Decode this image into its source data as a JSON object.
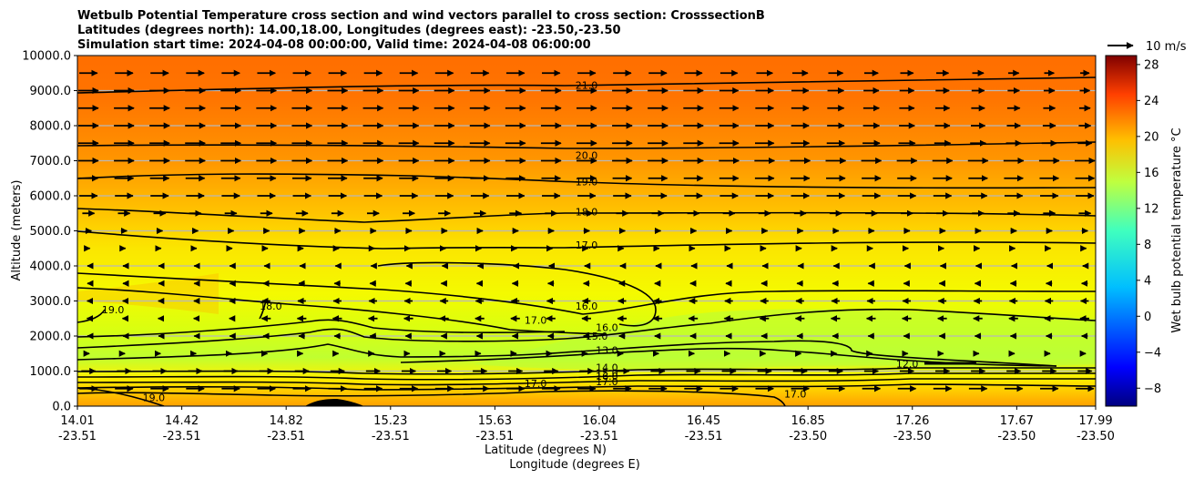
{
  "chart_data": {
    "type": "contour",
    "title_lines": [
      "Wetbulb Potential Temperature cross section and wind vectors parallel to cross section: CrosssectionB",
      "Latitudes (degrees north): 14.00,18.00, Longitudes (degrees east): -23.50,-23.50",
      "Simulation start time: 2024-04-08 00:00:00, Valid time: 2024-04-08 06:00:00"
    ],
    "xlabel_lines": [
      "Latitude (degrees N)",
      "Longitude (degrees E)"
    ],
    "ylabel": "Altitude (meters)",
    "x_ticks": [
      {
        "lat": "14.01",
        "lon": "-23.51",
        "pos": 0.0
      },
      {
        "lat": "14.42",
        "lon": "-23.51",
        "pos": 0.1025
      },
      {
        "lat": "14.82",
        "lon": "-23.51",
        "pos": 0.205
      },
      {
        "lat": "15.23",
        "lon": "-23.51",
        "pos": 0.3075
      },
      {
        "lat": "15.63",
        "lon": "-23.51",
        "pos": 0.41
      },
      {
        "lat": "16.04",
        "lon": "-23.51",
        "pos": 0.5125
      },
      {
        "lat": "16.45",
        "lon": "-23.51",
        "pos": 0.615
      },
      {
        "lat": "16.85",
        "lon": "-23.50",
        "pos": 0.7175
      },
      {
        "lat": "17.26",
        "lon": "-23.50",
        "pos": 0.82
      },
      {
        "lat": "17.67",
        "lon": "-23.50",
        "pos": 0.9225
      },
      {
        "lat": "17.99",
        "lon": "-23.50",
        "pos": 1.0
      }
    ],
    "y_ticks": [
      "0.0",
      "1000.0",
      "2000.0",
      "3000.0",
      "4000.0",
      "5000.0",
      "6000.0",
      "7000.0",
      "8000.0",
      "9000.0",
      "10000.0"
    ],
    "ylim": [
      0,
      10000
    ],
    "grid": "horizontal",
    "colorbar": {
      "label": "Wet bulb potential temperature °C",
      "range": [
        -10,
        29
      ],
      "ticks": [
        "−8",
        "−4",
        "0",
        "4",
        "8",
        "12",
        "16",
        "20",
        "24",
        "28"
      ],
      "tick_values": [
        -8,
        -4,
        0,
        4,
        8,
        12,
        16,
        20,
        24,
        28
      ],
      "colormap": "jet"
    },
    "quiver_key": "10 m/s",
    "contour_labels": [
      {
        "text": "21.0",
        "x": 0.5,
        "y": 9100
      },
      {
        "text": "20.0",
        "x": 0.5,
        "y": 7100
      },
      {
        "text": "19.0",
        "x": 0.5,
        "y": 6350
      },
      {
        "text": "18.0",
        "x": 0.5,
        "y": 5500
      },
      {
        "text": "17.0",
        "x": 0.5,
        "y": 4550
      },
      {
        "text": "16.0",
        "x": 0.5,
        "y": 2800
      },
      {
        "text": "16.0",
        "x": 0.52,
        "y": 2200
      },
      {
        "text": "15.0",
        "x": 0.51,
        "y": 1950
      },
      {
        "text": "13.0",
        "x": 0.52,
        "y": 1550
      },
      {
        "text": "14.0",
        "x": 0.52,
        "y": 1050
      },
      {
        "text": "15.0",
        "x": 0.52,
        "y": 900
      },
      {
        "text": "16.0",
        "x": 0.52,
        "y": 800
      },
      {
        "text": "17.0",
        "x": 0.52,
        "y": 650
      },
      {
        "text": "17.0",
        "x": 0.45,
        "y": 600
      },
      {
        "text": "17.0",
        "x": 0.45,
        "y": 2400
      },
      {
        "text": "18.0",
        "x": 0.19,
        "y": 2800
      },
      {
        "text": "19.0",
        "x": 0.035,
        "y": 2700
      },
      {
        "text": "19.0",
        "x": 0.075,
        "y": 200
      },
      {
        "text": "12.0",
        "x": 0.815,
        "y": 1150
      },
      {
        "text": "17.0",
        "x": 0.705,
        "y": 300
      }
    ],
    "wind_rows": [
      {
        "alt": 9500,
        "dir": 1,
        "mag": 0.9,
        "fade": 0.5
      },
      {
        "alt": 9000,
        "dir": 1,
        "mag": 1.0,
        "fade": 0.5
      },
      {
        "alt": 8500,
        "dir": 1,
        "mag": 1.0,
        "fade": 0.55
      },
      {
        "alt": 8000,
        "dir": 1,
        "mag": 1.0,
        "fade": 0.6
      },
      {
        "alt": 7500,
        "dir": 1,
        "mag": 1.0,
        "fade": 0.7
      },
      {
        "alt": 7000,
        "dir": 1,
        "mag": 1.0,
        "fade": 0.8
      },
      {
        "alt": 6500,
        "dir": 1,
        "mag": 0.95,
        "fade": 0.8
      },
      {
        "alt": 6000,
        "dir": 1,
        "mag": 0.9,
        "fade": 0.8
      },
      {
        "alt": 5500,
        "dir": 1,
        "mag": 0.6,
        "fade": 0.8
      },
      {
        "alt": 5000,
        "dir": 1,
        "mag": 0.3,
        "fade": 0.8
      },
      {
        "alt": 4500,
        "dir": 1,
        "mag": 0.15,
        "fade": 0.8
      },
      {
        "alt": 4000,
        "dir": -1,
        "mag": 0.2,
        "fade": 1.0
      },
      {
        "alt": 3500,
        "dir": -1,
        "mag": 0.3,
        "fade": 1.0
      },
      {
        "alt": 3000,
        "dir": -1,
        "mag": 0.4,
        "fade": 1.0
      },
      {
        "alt": 2500,
        "dir": -1,
        "mag": 0.45,
        "fade": 1.0
      },
      {
        "alt": 2000,
        "dir": -1,
        "mag": 0.3,
        "fade": 1.0
      },
      {
        "alt": 1500,
        "dir": 1,
        "mag": 0.1,
        "fade": 1.0
      },
      {
        "alt": 1000,
        "dir": 1,
        "mag": 0.7,
        "fade": 1.0
      },
      {
        "alt": 500,
        "dir": 1,
        "mag": 0.9,
        "fade": 1.0
      }
    ]
  }
}
